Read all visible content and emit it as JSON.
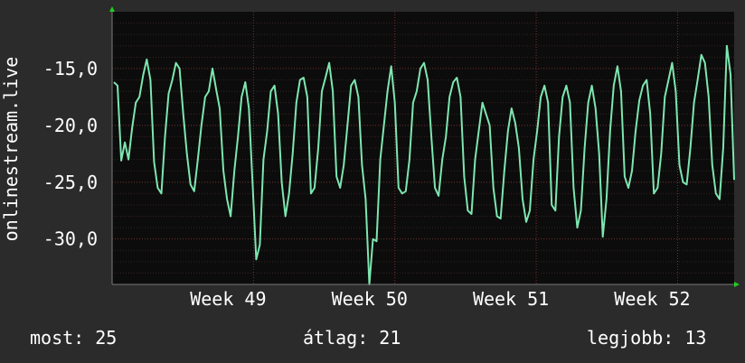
{
  "chart_data": {
    "type": "line",
    "ylabel": "onlinestream.live",
    "y_ticks": [
      "-15,0",
      "-20,0",
      "-25,0",
      "-30,0"
    ],
    "y_tick_values": [
      -15,
      -20,
      -25,
      -30
    ],
    "ylim": [
      -34,
      -10
    ],
    "x_ticks": [
      "Week 49",
      "Week 50",
      "Week 51",
      "Week 52"
    ],
    "grid": true,
    "colors": {
      "background": "#2b2b2b",
      "plot": "#0c0c0c",
      "line": "#7de6b0",
      "grid": "#5a2a2a",
      "axis_arrow": "#22cc22"
    },
    "series": [
      {
        "values": [
          -16.2,
          -16.5,
          -23.1,
          -21.5,
          -23.0,
          -20.2,
          -18.0,
          -17.5,
          -15.6,
          -14.2,
          -16.0,
          -23.2,
          -25.5,
          -26.0,
          -21.0,
          -17.2,
          -16.0,
          -14.5,
          -15.0,
          -19.0,
          -22.5,
          -25.2,
          -25.8,
          -23.0,
          -20.0,
          -17.5,
          -17.0,
          -15.0,
          -16.8,
          -18.5,
          -24.0,
          -26.5,
          -28.0,
          -24.0,
          -21.0,
          -17.5,
          -16.2,
          -18.5,
          -25.0,
          -31.8,
          -30.5,
          -23.0,
          -20.5,
          -17.0,
          -16.5,
          -19.0,
          -25.0,
          -28.0,
          -26.0,
          -22.5,
          -18.0,
          -16.0,
          -15.8,
          -17.5,
          -26.0,
          -25.5,
          -22.0,
          -17.0,
          -15.8,
          -14.5,
          -17.0,
          -24.5,
          -25.5,
          -23.5,
          -20.0,
          -16.5,
          -16.0,
          -17.5,
          -23.5,
          -26.5,
          -34.0,
          -30.0,
          -30.2,
          -23.0,
          -20.0,
          -17.0,
          -14.8,
          -18.0,
          -25.5,
          -26.0,
          -25.8,
          -23.0,
          -18.0,
          -17.0,
          -15.0,
          -14.5,
          -16.0,
          -21.0,
          -25.5,
          -26.2,
          -23.0,
          -21.0,
          -17.5,
          -16.2,
          -15.8,
          -17.5,
          -24.5,
          -27.5,
          -27.8,
          -23.0,
          -20.5,
          -18.0,
          -19.0,
          -20.0,
          -25.5,
          -28.0,
          -28.2,
          -24.0,
          -20.5,
          -18.5,
          -19.8,
          -22.0,
          -26.5,
          -28.5,
          -27.5,
          -23.0,
          -20.5,
          -17.5,
          -16.5,
          -18.0,
          -27.0,
          -27.5,
          -21.0,
          -17.5,
          -16.5,
          -18.0,
          -25.5,
          -29.0,
          -27.5,
          -22.0,
          -18.0,
          -16.5,
          -18.5,
          -22.5,
          -29.8,
          -26.5,
          -20.5,
          -16.5,
          -14.8,
          -17.0,
          -24.5,
          -25.5,
          -24.0,
          -20.5,
          -17.8,
          -16.5,
          -16.0,
          -19.0,
          -26.0,
          -25.5,
          -22.5,
          -17.5,
          -16.0,
          -14.5,
          -17.0,
          -23.5,
          -25.0,
          -25.2,
          -22.0,
          -18.0,
          -16.0,
          -13.8,
          -14.5,
          -17.5,
          -23.5,
          -26.0,
          -26.5,
          -22.0,
          -13.0,
          -15.5,
          -24.8
        ]
      }
    ]
  },
  "footer": {
    "current": "most: 25",
    "average": "átlag: 21",
    "best": "legjobb: 13"
  }
}
